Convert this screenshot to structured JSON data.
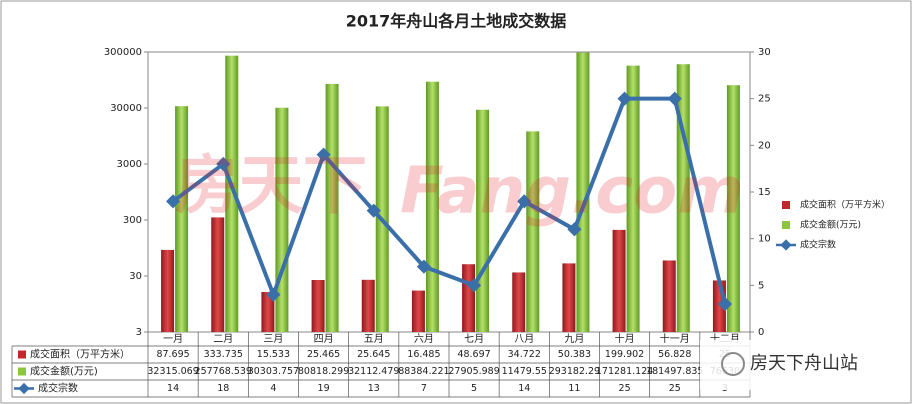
{
  "chart_data": {
    "type": "bar-line",
    "title": "2017年舟山各月土地成交数据",
    "categories": [
      "一月",
      "二月",
      "三月",
      "四月",
      "五月",
      "六月",
      "七月",
      "八月",
      "九月",
      "十月",
      "十一月",
      "十二月"
    ],
    "series": [
      {
        "name": "成交面积（万平方米）",
        "color": "#c0282c",
        "kind": "bar",
        "values": [
          87.695,
          333.735,
          15.533,
          25.465,
          25.645,
          16.485,
          48.697,
          34.722,
          50.383,
          199.902,
          56.828,
          25
        ]
      },
      {
        "name": "成交金额(万元)",
        "color": "#8cc63f",
        "kind": "bar",
        "values": [
          32315.069,
          257768.539,
          30303.757,
          80818.299,
          32112.479,
          88384.221,
          27905.989,
          11479.55,
          293182.29,
          171281.124,
          181497.835,
          76630
        ]
      },
      {
        "name": "成交宗数",
        "color": "#3a6faa",
        "kind": "line",
        "axis": "y2",
        "values": [
          14,
          18,
          4,
          19,
          13,
          7,
          5,
          14,
          11,
          25,
          25,
          3
        ]
      }
    ],
    "yscale": "log",
    "ylim": [
      3,
      300000
    ],
    "yticks": [
      3,
      30,
      300,
      3000,
      30000,
      300000
    ],
    "y2lim": [
      0,
      30
    ],
    "y2ticks": [
      0,
      5,
      10,
      15,
      20,
      25,
      30
    ],
    "legend": "right",
    "watermark": [
      "房天下",
      "Fang.com"
    ],
    "logo": "房天下舟山站"
  }
}
